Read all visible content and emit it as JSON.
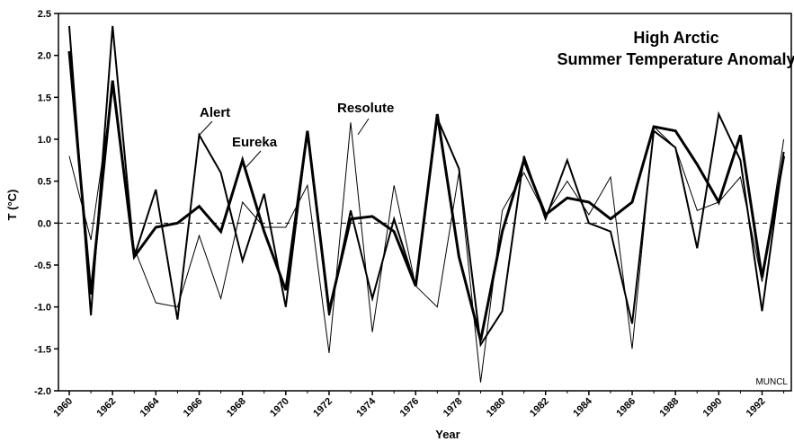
{
  "chart_data": {
    "type": "line",
    "title": [
      "High Arctic",
      "Summer Temperature Anomaly"
    ],
    "x_label": "Year",
    "y_label": "T (°C)",
    "annotation": "MUNCL",
    "x": [
      1960,
      1961,
      1962,
      1963,
      1964,
      1965,
      1966,
      1967,
      1968,
      1969,
      1970,
      1971,
      1972,
      1973,
      1974,
      1975,
      1976,
      1977,
      1978,
      1979,
      1980,
      1981,
      1982,
      1983,
      1984,
      1985,
      1986,
      1987,
      1988,
      1989,
      1990,
      1991,
      1992,
      1993
    ],
    "series": [
      {
        "name": "Alert",
        "color": "#000000",
        "width": 2,
        "values": [
          2.35,
          -1.1,
          2.35,
          -0.4,
          0.4,
          -1.15,
          1.05,
          0.6,
          -0.45,
          0.35,
          -1.0,
          1.1,
          -1.1,
          0.15,
          -0.9,
          0.05,
          -0.75,
          1.25,
          0.65,
          -1.45,
          -1.05,
          0.8,
          0.05,
          0.75,
          0.0,
          -0.1,
          -1.2,
          1.1,
          0.9,
          -0.3,
          1.3,
          0.75,
          -1.05,
          0.85
        ]
      },
      {
        "name": "Eureka",
        "color": "#000000",
        "width": 3,
        "values": [
          2.05,
          -0.85,
          1.7,
          -0.4,
          -0.05,
          0.0,
          0.2,
          -0.1,
          0.75,
          -0.1,
          -0.8,
          1.1,
          -1.05,
          0.05,
          0.08,
          -0.1,
          -0.75,
          1.3,
          -0.4,
          -1.4,
          -0.1,
          0.75,
          0.1,
          0.3,
          0.25,
          0.05,
          0.25,
          1.15,
          1.1,
          0.7,
          0.25,
          1.05,
          -0.65,
          0.8
        ]
      },
      {
        "name": "Resolute",
        "color": "#000000",
        "width": 1,
        "values": [
          0.8,
          -0.2,
          1.6,
          -0.3,
          -0.95,
          -1.0,
          -0.15,
          -0.9,
          0.25,
          -0.05,
          -0.05,
          0.45,
          -1.55,
          1.2,
          -1.3,
          0.45,
          -0.75,
          -1.0,
          0.6,
          -1.9,
          0.15,
          0.6,
          0.1,
          0.5,
          0.1,
          0.55,
          -1.5,
          1.15,
          0.9,
          0.15,
          0.25,
          0.55,
          -0.7,
          1.0
        ]
      }
    ],
    "xlim": [
      1959.5,
      1993.35
    ],
    "xticks": [
      1960,
      1962,
      1964,
      1966,
      1968,
      1970,
      1972,
      1974,
      1976,
      1978,
      1980,
      1982,
      1984,
      1986,
      1988,
      1990,
      1992
    ],
    "ylim": [
      -2.0,
      2.5
    ],
    "yticks": [
      {
        "value": -2,
        "label": "-2.0"
      },
      -1.5,
      {
        "value": -1,
        "label": "-1.0"
      },
      -0.5,
      {
        "value": 0,
        "label": "0.0"
      },
      0.5,
      {
        "value": 1,
        "label": "1.0"
      },
      1.5,
      {
        "value": 2,
        "label": "2.0"
      },
      2.5
    ],
    "reference_line": 0
  }
}
